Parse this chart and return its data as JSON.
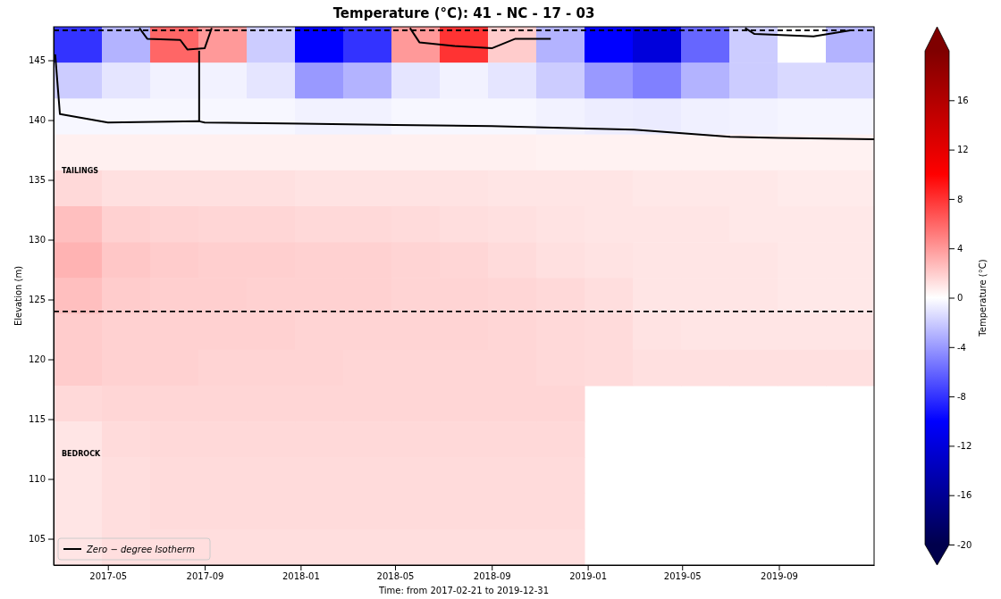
{
  "chart_data": {
    "type": "heatmap",
    "title": "Temperature (°C): 41 - NC - 17 - 03",
    "xlabel": "Time: from 2017-02-21 to 2019-12-31",
    "ylabel": "Elevation (m)",
    "clabel": "Temperature (°C)",
    "xlim": [
      "2017-02-21",
      "2019-12-31"
    ],
    "xticks": [
      {
        "value": "2017-05",
        "label": "2017-05"
      },
      {
        "value": "2017-09",
        "label": "2017-09"
      },
      {
        "value": "2018-01",
        "label": "2018-01"
      },
      {
        "value": "2018-05",
        "label": "2018-05"
      },
      {
        "value": "2018-09",
        "label": "2018-09"
      },
      {
        "value": "2019-01",
        "label": "2019-01"
      },
      {
        "value": "2019-05",
        "label": "2019-05"
      },
      {
        "value": "2019-09",
        "label": "2019-09"
      }
    ],
    "ylim": [
      102.8,
      147.8
    ],
    "yticks": [
      105,
      110,
      115,
      120,
      125,
      130,
      135,
      140,
      145
    ],
    "clim": [
      -20,
      20
    ],
    "cticks": [
      -20,
      -16,
      -12,
      -8,
      -4,
      0,
      4,
      8,
      12,
      16
    ],
    "cells": [
      [
        -8,
        -3,
        6,
        4,
        -2,
        -10,
        -8,
        4,
        8,
        2,
        -3,
        -10,
        -12,
        -6,
        -2,
        0,
        -3
      ],
      [
        -2,
        -1,
        -0.5,
        -0.5,
        -1,
        -4,
        -3,
        -1,
        -0.5,
        -1,
        -2,
        -4,
        -5,
        -3,
        -2,
        -1.5,
        -1.5
      ],
      [
        -0.3,
        -0.3,
        -0.3,
        -0.3,
        -0.3,
        -0.5,
        -0.5,
        -0.3,
        -0.3,
        -0.3,
        -0.5,
        -0.7,
        -0.8,
        -0.6,
        -0.5,
        -0.4,
        -0.4
      ],
      [
        0.6,
        0.6,
        0.6,
        0.6,
        0.6,
        0.6,
        0.6,
        0.6,
        0.6,
        0.6,
        0.5,
        0.5,
        0.5,
        0.5,
        0.5,
        0.5,
        0.5
      ],
      [
        1.5,
        1.2,
        1.2,
        1.2,
        1.2,
        1.1,
        1.1,
        1.1,
        1.1,
        1,
        1,
        1,
        0.9,
        0.9,
        0.9,
        0.8,
        0.8
      ],
      [
        2.5,
        1.8,
        1.7,
        1.6,
        1.6,
        1.5,
        1.5,
        1.4,
        1.3,
        1.2,
        1.1,
        1,
        1,
        1,
        0.9,
        0.9,
        0.9
      ],
      [
        3,
        2.2,
        2,
        1.9,
        1.9,
        1.8,
        1.8,
        1.7,
        1.6,
        1.4,
        1.2,
        1.1,
        1,
        1,
        1,
        0.9,
        0.9
      ],
      [
        2.5,
        2,
        1.9,
        1.9,
        1.8,
        1.8,
        1.8,
        1.7,
        1.7,
        1.6,
        1.5,
        1.3,
        1,
        1,
        1,
        0.9,
        0.9
      ],
      [
        2,
        1.8,
        1.8,
        1.8,
        1.8,
        1.7,
        1.7,
        1.7,
        1.7,
        1.6,
        1.5,
        1.4,
        1.1,
        1,
        1,
        1,
        1
      ],
      [
        2,
        1.8,
        1.8,
        1.7,
        1.7,
        1.7,
        1.6,
        1.6,
        1.6,
        1.6,
        1.5,
        1.4,
        1.2,
        1.2,
        1.2,
        1.2,
        1.2
      ],
      [
        1.5,
        1.6,
        1.6,
        1.6,
        1.6,
        1.6,
        1.6,
        1.6,
        1.6,
        1.6,
        1.6,
        null,
        null,
        null,
        null,
        null,
        null
      ],
      [
        1,
        1.4,
        1.5,
        1.5,
        1.5,
        1.5,
        1.5,
        1.5,
        1.5,
        1.5,
        1.5,
        null,
        null,
        null,
        null,
        null,
        null
      ],
      [
        1,
        1.3,
        1.4,
        1.4,
        1.4,
        1.4,
        1.4,
        1.4,
        1.4,
        1.4,
        1.4,
        null,
        null,
        null,
        null,
        null,
        null
      ],
      [
        1,
        1.3,
        1.4,
        1.4,
        1.4,
        1.4,
        1.4,
        1.4,
        1.4,
        1.4,
        1.4,
        null,
        null,
        null,
        null,
        null,
        null
      ],
      [
        1,
        1.3,
        1.3,
        1.3,
        1.3,
        1.3,
        1.3,
        1.3,
        1.3,
        1.3,
        1.3,
        null,
        null,
        null,
        null,
        null,
        null
      ]
    ],
    "series": [
      {
        "type": "line",
        "name": "Zero − degree  Isotherm",
        "color": "#000000",
        "x": [
          "2017-02-23",
          "2017-03-01",
          "2017-05-01",
          "2017-08-25",
          "2017-09-01",
          "2018-01-01",
          "2018-05-01",
          "2018-09-01",
          "2019-01-01",
          "2019-03-01",
          "2019-05-01",
          "2019-07-01",
          "2019-09-01",
          "2019-12-31"
        ],
        "values": [
          145.5,
          140.5,
          139.8,
          139.9,
          139.8,
          139.7,
          139.6,
          139.5,
          139.3,
          139.2,
          138.9,
          138.6,
          138.5,
          138.4
        ]
      },
      {
        "type": "line",
        "color": "#000000",
        "x": [
          "2017-08-25",
          "2017-08-25"
        ],
        "values": [
          139.9,
          145.8
        ]
      },
      {
        "type": "line",
        "color": "#000000",
        "x": [
          "2017-06-10",
          "2017-06-20",
          "2017-08-01",
          "2017-08-10",
          "2017-09-01",
          "2017-09-10"
        ],
        "values": [
          147.7,
          146.8,
          146.7,
          145.9,
          146.0,
          147.7
        ]
      },
      {
        "type": "line",
        "color": "#000000",
        "x": [
          "2018-05-20",
          "2018-06-01",
          "2018-07-15",
          "2018-09-01",
          "2018-10-01",
          "2018-11-15"
        ],
        "values": [
          147.7,
          146.5,
          146.2,
          146.0,
          146.8,
          146.8
        ]
      },
      {
        "type": "line",
        "color": "#000000",
        "x": [
          "2019-07-20",
          "2019-08-01",
          "2019-10-15",
          "2019-12-01"
        ],
        "values": [
          147.7,
          147.2,
          147.0,
          147.5
        ]
      }
    ],
    "ref_lines": [
      {
        "axis": "y",
        "value": 124,
        "color": "#000000",
        "line_style": "dashed"
      },
      {
        "axis": "y",
        "value": 147.5,
        "color": "#000000",
        "line_style": "dashed"
      }
    ],
    "annotations": [
      "TAILINGS",
      "BEDROCK"
    ],
    "legend": "bottom left"
  }
}
